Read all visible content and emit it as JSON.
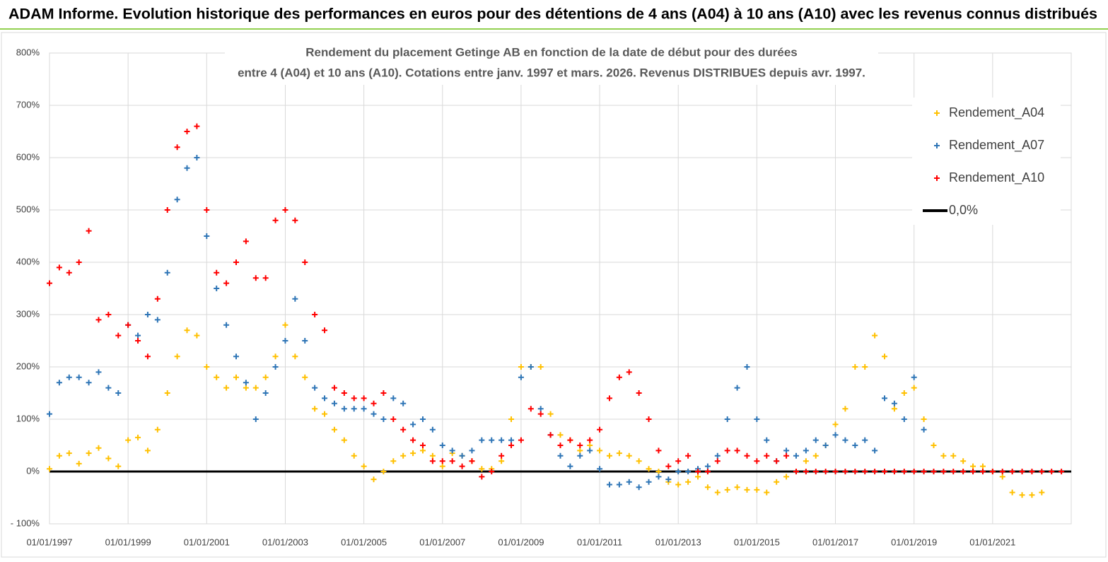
{
  "header": {
    "title": "ADAM Informe. Evolution historique des performances en euros pour des détentions de 4 ans (A04) à 10 ans (A10) avec les revenus connus distribués"
  },
  "chart_data": {
    "type": "scatter",
    "title": "Rendement du placement Getinge AB en fonction de la date de début pour des durées",
    "subtitle": "entre 4 (A04) et 10 ans (A10).  Cotations entre janv. 1997 et mars. 2026. Revenus DISTRIBUES depuis avr. 1997.",
    "xlim": [
      "01/01/1997",
      "01/01/2023"
    ],
    "xticks": [
      "01/01/1997",
      "01/01/1999",
      "01/01/2001",
      "01/01/2003",
      "01/01/2005",
      "01/01/2007",
      "01/01/2009",
      "01/01/2011",
      "01/01/2013",
      "01/01/2015",
      "01/01/2017",
      "01/01/2019",
      "01/01/2021"
    ],
    "ylim": [
      -100,
      800
    ],
    "yticks": [
      {
        "value": -100,
        "label": "- 100%"
      },
      {
        "value": 0,
        "label": "0%"
      },
      {
        "value": 100,
        "label": "100%"
      },
      {
        "value": 200,
        "label": "200%"
      },
      {
        "value": 300,
        "label": "300%"
      },
      {
        "value": 400,
        "label": "400%"
      },
      {
        "value": 500,
        "label": "500%"
      },
      {
        "value": 600,
        "label": "600%"
      },
      {
        "value": 700,
        "label": "700%"
      },
      {
        "value": 800,
        "label": "800%"
      }
    ],
    "grid": true,
    "legend": "top-right",
    "x": [
      "01/01/1997",
      "01/04/1997",
      "01/07/1997",
      "01/10/1997",
      "01/01/1998",
      "01/04/1998",
      "01/07/1998",
      "01/10/1998",
      "01/01/1999",
      "01/04/1999",
      "01/07/1999",
      "01/10/1999",
      "01/01/2000",
      "01/04/2000",
      "01/07/2000",
      "01/10/2000",
      "01/01/2001",
      "01/04/2001",
      "01/07/2001",
      "01/10/2001",
      "01/01/2002",
      "01/04/2002",
      "01/07/2002",
      "01/10/2002",
      "01/01/2003",
      "01/04/2003",
      "01/07/2003",
      "01/10/2003",
      "01/01/2004",
      "01/04/2004",
      "01/07/2004",
      "01/10/2004",
      "01/01/2005",
      "01/04/2005",
      "01/07/2005",
      "01/10/2005",
      "01/01/2006",
      "01/04/2006",
      "01/07/2006",
      "01/10/2006",
      "01/01/2007",
      "01/04/2007",
      "01/07/2007",
      "01/10/2007",
      "01/01/2008",
      "01/04/2008",
      "01/07/2008",
      "01/10/2008",
      "01/01/2009",
      "01/04/2009",
      "01/07/2009",
      "01/10/2009",
      "01/01/2010",
      "01/04/2010",
      "01/07/2010",
      "01/10/2010",
      "01/01/2011",
      "01/04/2011",
      "01/07/2011",
      "01/10/2011",
      "01/01/2012",
      "01/04/2012",
      "01/07/2012",
      "01/10/2012",
      "01/01/2013",
      "01/04/2013",
      "01/07/2013",
      "01/10/2013",
      "01/01/2014",
      "01/04/2014",
      "01/07/2014",
      "01/10/2014",
      "01/01/2015",
      "01/04/2015",
      "01/07/2015",
      "01/10/2015",
      "01/01/2016",
      "01/04/2016",
      "01/07/2016",
      "01/10/2016",
      "01/01/2017",
      "01/04/2017",
      "01/07/2017",
      "01/10/2017",
      "01/01/2018",
      "01/04/2018",
      "01/07/2018",
      "01/10/2018",
      "01/01/2019",
      "01/04/2019",
      "01/07/2019",
      "01/10/2019",
      "01/01/2020",
      "01/04/2020",
      "01/07/2020",
      "01/10/2020",
      "01/01/2021",
      "01/04/2021",
      "01/07/2021",
      "01/10/2021",
      "01/01/2022",
      "01/04/2022",
      "01/07/2022",
      "01/10/2022"
    ],
    "series": [
      {
        "name": "Rendement_A04",
        "color": "#ffc000",
        "values": [
          5,
          30,
          35,
          15,
          35,
          45,
          25,
          10,
          60,
          65,
          40,
          80,
          150,
          220,
          270,
          260,
          200,
          180,
          160,
          180,
          160,
          160,
          180,
          220,
          280,
          220,
          180,
          120,
          110,
          80,
          60,
          30,
          10,
          -15,
          0,
          20,
          30,
          35,
          40,
          30,
          10,
          35,
          30,
          20,
          5,
          5,
          20,
          100,
          200,
          200,
          200,
          110,
          70,
          60,
          40,
          50,
          40,
          30,
          35,
          30,
          20,
          5,
          0,
          -20,
          -25,
          -20,
          -10,
          -30,
          -40,
          -35,
          -30,
          -35,
          -35,
          -40,
          -20,
          -10,
          0,
          20,
          30,
          50,
          90,
          120,
          200,
          200,
          260,
          220,
          120,
          150,
          160,
          100,
          50,
          30,
          30,
          20,
          10,
          10,
          0,
          -10,
          -40,
          -45,
          -45,
          -40,
          null,
          null
        ]
      },
      {
        "name": "Rendement_A07",
        "color": "#2e75b6",
        "values": [
          110,
          170,
          180,
          180,
          170,
          190,
          160,
          150,
          280,
          260,
          300,
          290,
          380,
          520,
          580,
          600,
          450,
          350,
          280,
          220,
          170,
          100,
          150,
          200,
          250,
          330,
          250,
          160,
          140,
          130,
          120,
          120,
          120,
          110,
          100,
          140,
          130,
          90,
          100,
          80,
          50,
          40,
          30,
          40,
          60,
          60,
          60,
          60,
          180,
          200,
          120,
          70,
          30,
          10,
          30,
          40,
          5,
          -25,
          -25,
          -20,
          -30,
          -20,
          -10,
          -15,
          0,
          0,
          5,
          10,
          30,
          100,
          160,
          200,
          100,
          60,
          20,
          40,
          30,
          40,
          60,
          50,
          70,
          60,
          50,
          60,
          40,
          140,
          130,
          100,
          180,
          80,
          null,
          null,
          null,
          null,
          null,
          null,
          null,
          null,
          null,
          null,
          null,
          null,
          null,
          null
        ]
      },
      {
        "name": "Rendement_A10",
        "color": "#ff0000",
        "values": [
          360,
          390,
          380,
          400,
          460,
          290,
          300,
          260,
          280,
          250,
          220,
          330,
          500,
          620,
          650,
          660,
          500,
          380,
          360,
          400,
          440,
          370,
          370,
          480,
          500,
          480,
          400,
          300,
          270,
          160,
          150,
          140,
          140,
          130,
          150,
          100,
          80,
          60,
          50,
          20,
          20,
          20,
          10,
          20,
          -10,
          0,
          30,
          50,
          60,
          120,
          110,
          70,
          50,
          60,
          50,
          60,
          80,
          140,
          180,
          190,
          150,
          100,
          40,
          10,
          20,
          30,
          0,
          0,
          20,
          40,
          40,
          30,
          20,
          30,
          20,
          30,
          0,
          0,
          0,
          0,
          0,
          0,
          0,
          0,
          0,
          0,
          0,
          0,
          0,
          0,
          0,
          0,
          0,
          0,
          0,
          0,
          0,
          0,
          0,
          0,
          0,
          0,
          0,
          0
        ]
      }
    ],
    "reference_line": {
      "name": "0,0%",
      "color": "#000000",
      "value": 0
    }
  }
}
